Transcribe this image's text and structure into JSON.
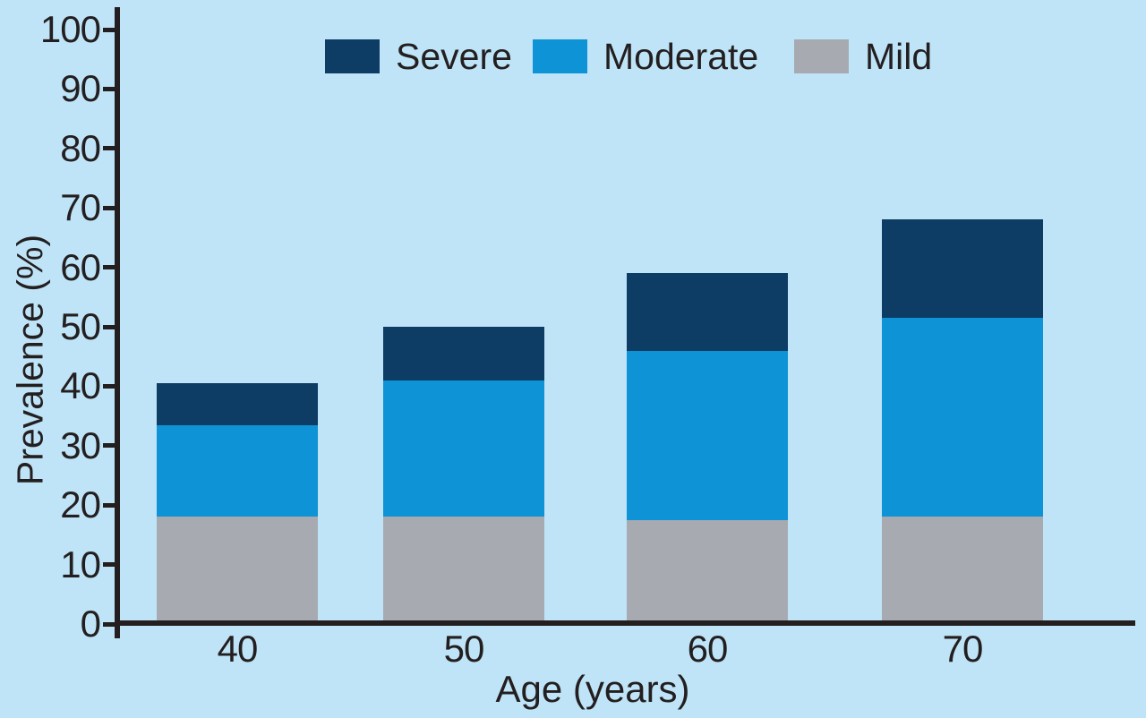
{
  "colors": {
    "background": "#bfe4f7",
    "axis": "#231f20",
    "text": "#231f20",
    "severe": "#0d3c64",
    "moderate": "#0d93d6",
    "mild": "#a7abb1"
  },
  "legend": {
    "items": [
      {
        "label": "Severe",
        "color": "#0d3c64"
      },
      {
        "label": "Moderate",
        "color": "#0d93d6"
      },
      {
        "label": "Mild",
        "color": "#a7abb1"
      }
    ]
  },
  "chart_data": {
    "type": "bar",
    "stacked": true,
    "title": "",
    "xlabel": "Age (years)",
    "ylabel": "Prevalence (%)",
    "categories": [
      "40",
      "50",
      "60",
      "70"
    ],
    "series": [
      {
        "name": "Mild",
        "color": "#a7abb1",
        "values": [
          18,
          18,
          17.5,
          18
        ]
      },
      {
        "name": "Moderate",
        "color": "#0d93d6",
        "values": [
          15.5,
          23,
          28.5,
          33.5
        ]
      },
      {
        "name": "Severe",
        "color": "#0d3c64",
        "values": [
          7,
          9,
          13,
          16.5
        ]
      }
    ],
    "stack_tops": {
      "mild": [
        18,
        18,
        17.5,
        18
      ],
      "moderate": [
        33.5,
        41,
        46,
        51.5
      ],
      "severe": [
        40.5,
        50,
        59,
        68
      ]
    },
    "ylim": [
      0,
      100
    ],
    "yticks": [
      0,
      10,
      20,
      30,
      40,
      50,
      60,
      70,
      80,
      90,
      100
    ],
    "grid": false,
    "legend_position": "top"
  }
}
